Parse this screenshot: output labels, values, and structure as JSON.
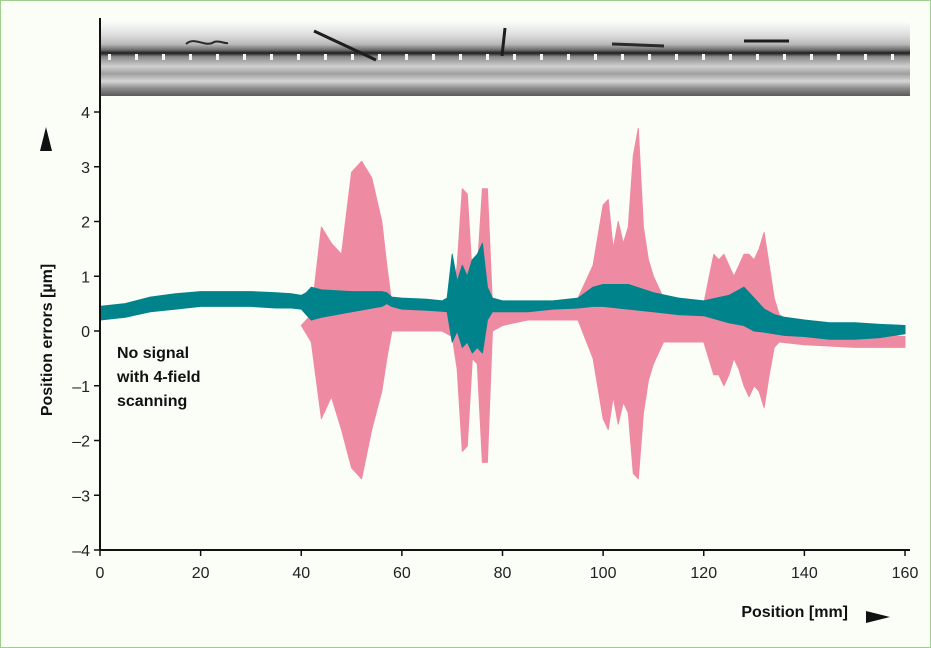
{
  "colors": {
    "without_four_field": "#ef8aa3",
    "with_four_field": "#00838a",
    "axis": "#111111",
    "frame": "#9ecf8e"
  },
  "chart_data": {
    "type": "area",
    "xlabel": "Position [mm]",
    "ylabel": "Position errors [µm]",
    "xlim": [
      0,
      160
    ],
    "ylim": [
      -4,
      4
    ],
    "x_ticks": [
      "0",
      "20",
      "40",
      "60",
      "80",
      "100",
      "120",
      "140",
      "160"
    ],
    "y_ticks": [
      "4",
      "3",
      "2",
      "1",
      "0",
      "–1",
      "–2",
      "–3",
      "–4"
    ],
    "annotation": [
      "No signal",
      "with 4-field",
      "scanning"
    ],
    "grid": false,
    "series": [
      {
        "color": "#ef8aa3",
        "x": [
          40,
          42,
          44,
          46,
          48,
          50,
          52,
          54,
          56,
          57,
          58,
          60,
          65,
          68,
          70,
          71,
          72,
          73,
          74,
          75,
          76,
          77,
          78,
          80,
          85,
          90,
          95,
          98,
          100,
          101,
          102,
          103,
          104,
          105,
          106,
          107,
          108,
          109,
          110,
          112,
          115,
          120,
          122,
          123,
          124,
          125,
          126,
          127,
          128,
          129,
          130,
          131,
          132,
          133,
          134,
          135,
          140,
          150,
          160
        ],
        "upper": [
          0.1,
          0.3,
          1.9,
          1.6,
          1.4,
          2.9,
          3.1,
          2.8,
          2.0,
          1.2,
          0.5,
          0.5,
          0.5,
          0.5,
          0.6,
          1.2,
          2.6,
          2.5,
          1.0,
          1.1,
          2.6,
          2.6,
          0.5,
          0.5,
          0.5,
          0.5,
          0.6,
          1.2,
          2.3,
          2.4,
          1.5,
          2.0,
          1.6,
          1.9,
          3.2,
          3.7,
          1.9,
          1.3,
          1.0,
          0.6,
          0.6,
          0.5,
          1.4,
          1.3,
          1.4,
          1.2,
          1.0,
          1.2,
          1.4,
          1.4,
          1.3,
          1.5,
          1.8,
          1.2,
          0.6,
          0.3,
          0.0,
          -0.05,
          -0.1
        ],
        "lower": [
          0.1,
          -0.2,
          -1.6,
          -1.2,
          -1.8,
          -2.5,
          -2.7,
          -1.8,
          -1.1,
          -0.5,
          0.0,
          0.0,
          0.0,
          0.0,
          -0.1,
          -0.7,
          -2.2,
          -2.1,
          -0.5,
          -0.6,
          -2.4,
          -2.4,
          0.0,
          0.1,
          0.2,
          0.2,
          0.2,
          -0.5,
          -1.6,
          -1.8,
          -1.2,
          -1.7,
          -1.3,
          -1.5,
          -2.6,
          -2.7,
          -1.5,
          -0.9,
          -0.6,
          -0.2,
          -0.2,
          -0.2,
          -0.8,
          -0.8,
          -1.0,
          -0.8,
          -0.5,
          -0.7,
          -1.0,
          -1.2,
          -1.0,
          -1.1,
          -1.4,
          -0.8,
          -0.3,
          -0.2,
          -0.25,
          -0.3,
          -0.3
        ]
      },
      {
        "color": "#00838a",
        "x": [
          0,
          5,
          10,
          15,
          20,
          25,
          30,
          35,
          38,
          40,
          41,
          42,
          44,
          50,
          56,
          57,
          58,
          60,
          65,
          68,
          69,
          70,
          71,
          72,
          73,
          74,
          75,
          76,
          77,
          78,
          80,
          85,
          90,
          95,
          98,
          100,
          105,
          110,
          115,
          120,
          125,
          128,
          130,
          132,
          134,
          136,
          140,
          145,
          150,
          155,
          160
        ],
        "upper": [
          0.45,
          0.5,
          0.62,
          0.68,
          0.72,
          0.72,
          0.72,
          0.7,
          0.68,
          0.65,
          0.7,
          0.8,
          0.75,
          0.72,
          0.72,
          0.7,
          0.62,
          0.6,
          0.58,
          0.55,
          0.6,
          1.4,
          0.9,
          1.2,
          1.0,
          1.3,
          1.4,
          1.6,
          0.8,
          0.6,
          0.55,
          0.55,
          0.55,
          0.6,
          0.8,
          0.85,
          0.85,
          0.7,
          0.6,
          0.55,
          0.65,
          0.8,
          0.6,
          0.4,
          0.3,
          0.25,
          0.2,
          0.15,
          0.15,
          0.12,
          0.1
        ],
        "lower": [
          0.2,
          0.25,
          0.35,
          0.4,
          0.45,
          0.45,
          0.45,
          0.42,
          0.42,
          0.4,
          0.3,
          0.2,
          0.25,
          0.35,
          0.45,
          0.5,
          0.45,
          0.4,
          0.38,
          0.36,
          0.35,
          -0.2,
          0.0,
          -0.3,
          -0.2,
          -0.4,
          -0.3,
          -0.4,
          0.2,
          0.35,
          0.35,
          0.35,
          0.4,
          0.42,
          0.45,
          0.45,
          0.4,
          0.35,
          0.3,
          0.28,
          0.15,
          0.1,
          0.0,
          -0.02,
          -0.05,
          -0.08,
          -0.1,
          -0.15,
          -0.15,
          -0.12,
          -0.05
        ]
      }
    ]
  }
}
